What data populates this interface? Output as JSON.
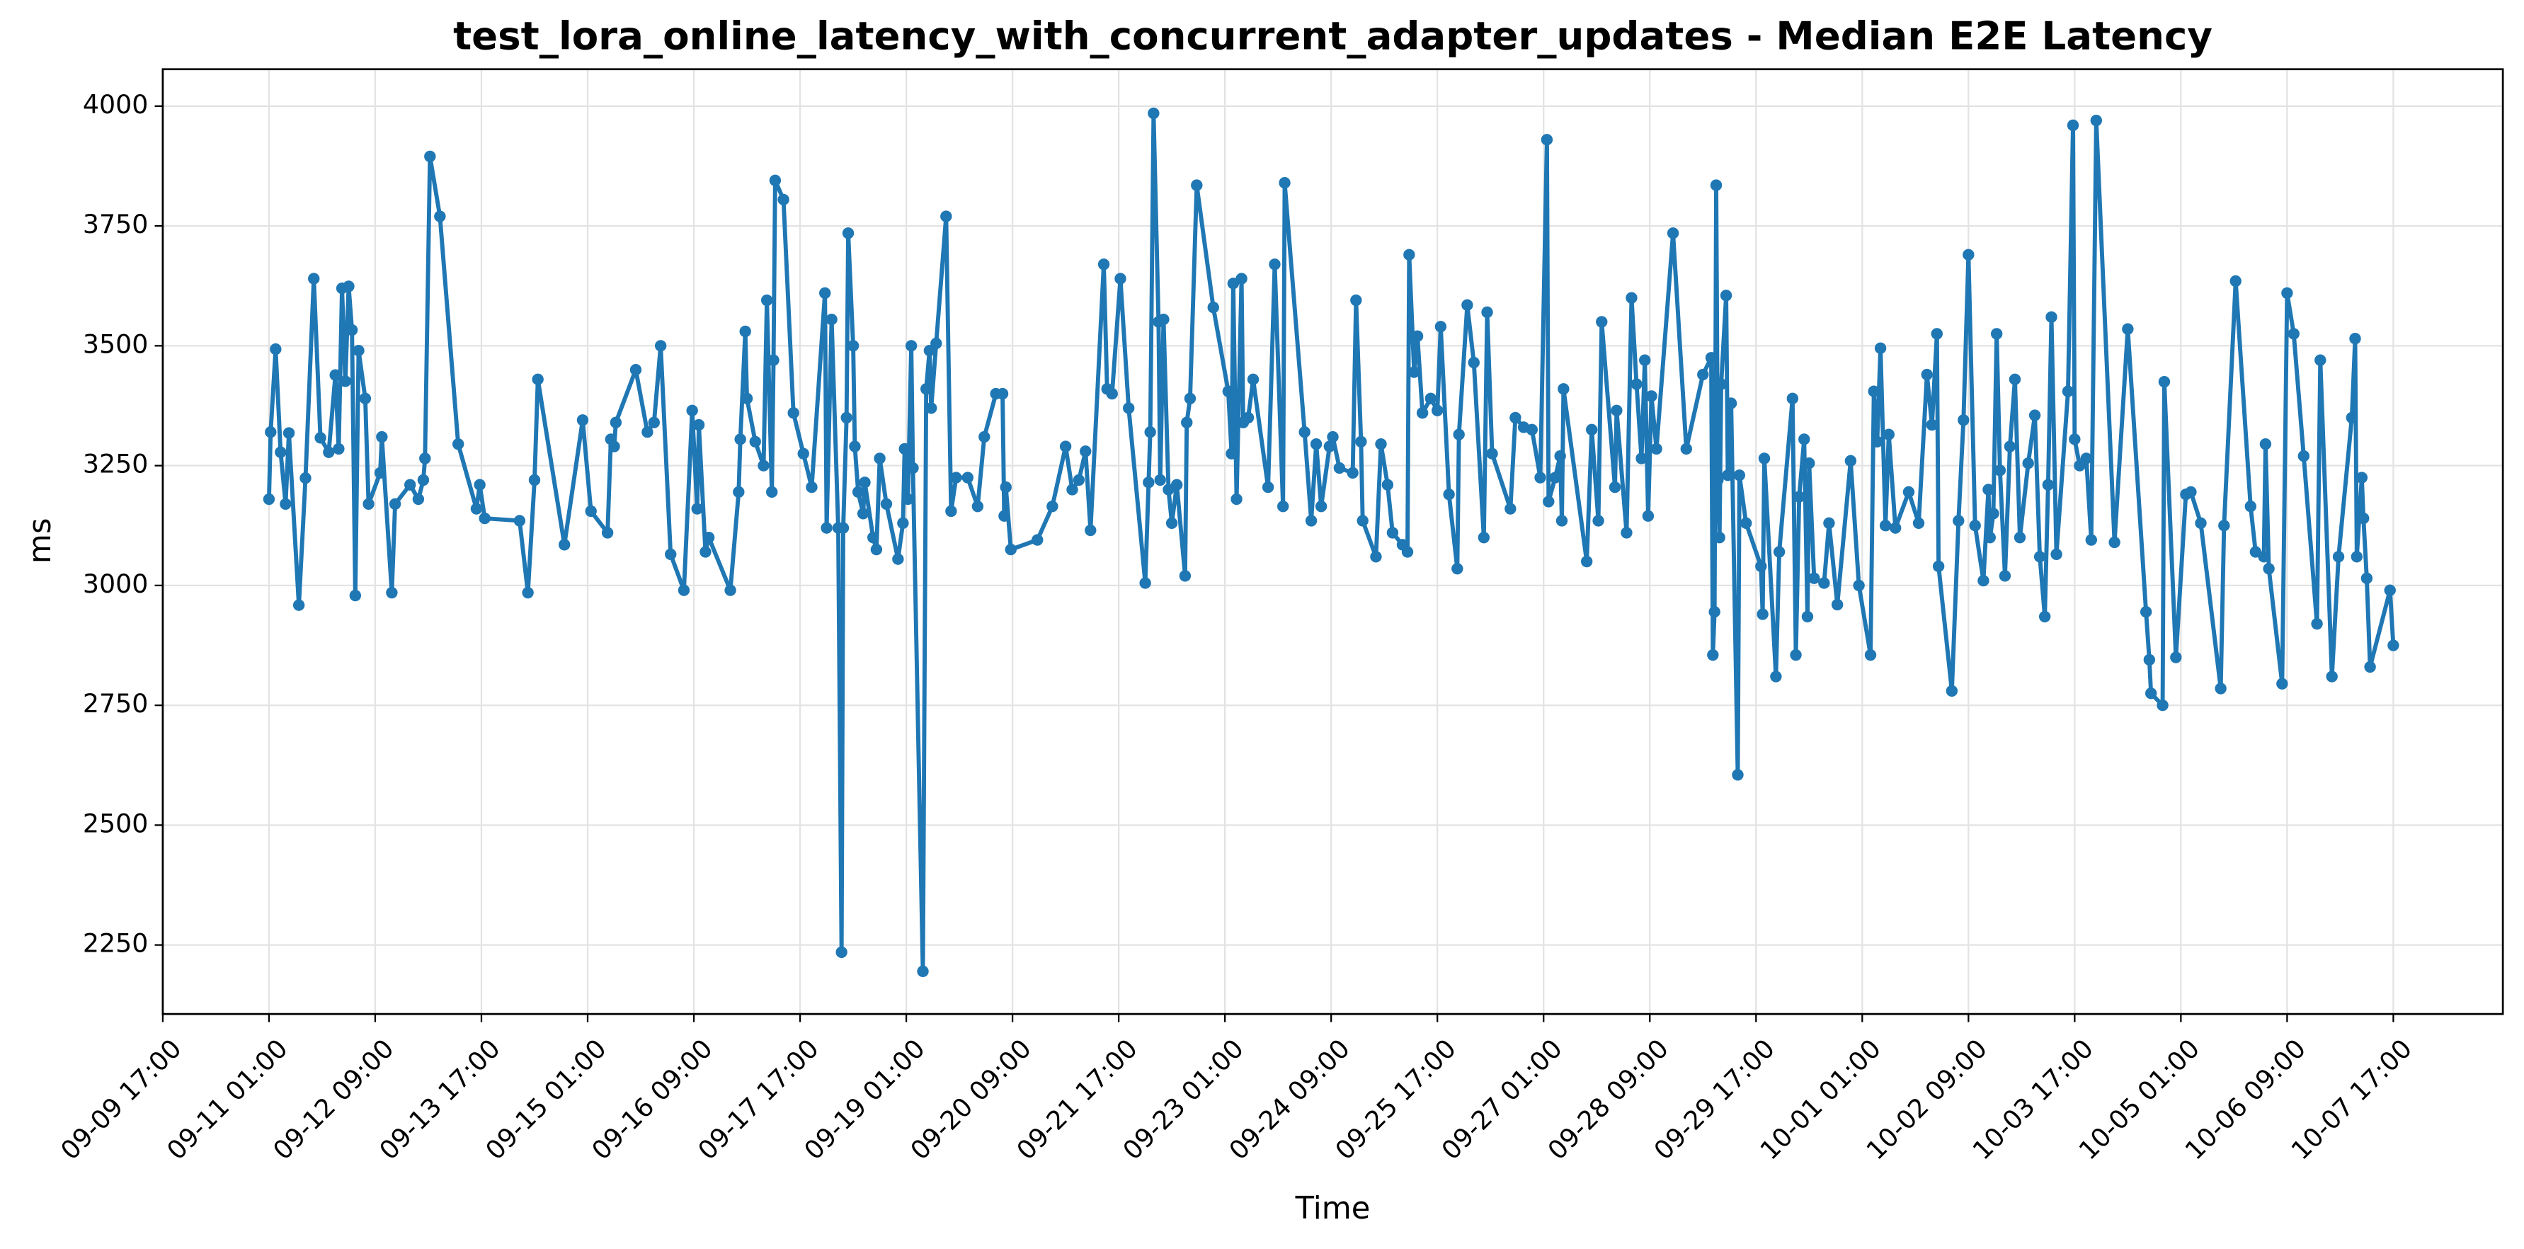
{
  "chart_data": {
    "type": "line",
    "title": "test_lora_online_latency_with_concurrent_adapter_updates - Median E2E Latency",
    "xlabel": "Time",
    "ylabel": "ms",
    "color": "#1f77b4",
    "grid": true,
    "xlim": [
      "09-09 17:00",
      "10-09 02:00"
    ],
    "xticks": [
      "09-09 17:00",
      "09-11 01:00",
      "09-12 09:00",
      "09-13 17:00",
      "09-15 01:00",
      "09-16 09:00",
      "09-17 17:00",
      "09-19 01:00",
      "09-20 09:00",
      "09-21 17:00",
      "09-23 01:00",
      "09-24 09:00",
      "09-25 17:00",
      "09-27 01:00",
      "09-28 09:00",
      "09-29 17:00",
      "10-01 01:00",
      "10-02 09:00",
      "10-03 17:00",
      "10-05 01:00",
      "10-06 09:00",
      "10-07 17:00"
    ],
    "ylim": [
      2106,
      4077
    ],
    "yticks": [
      2250,
      2500,
      2750,
      3000,
      3250,
      3500,
      3750,
      4000
    ],
    "x": [
      "09-11 01:00",
      "09-11 01:30",
      "09-11 03:00",
      "09-11 04:30",
      "09-11 06:00",
      "09-11 07:00",
      "09-11 10:00",
      "09-11 12:00",
      "09-11 14:30",
      "09-11 16:30",
      "09-11 19:00",
      "09-11 21:00",
      "09-11 22:00",
      "09-11 23:00",
      "09-12 00:00",
      "09-12 01:00",
      "09-12 02:00",
      "09-12 03:00",
      "09-12 04:00",
      "09-12 06:00",
      "09-12 07:00",
      "09-12 10:30",
      "09-12 11:00",
      "09-12 14:00",
      "09-12 15:00",
      "09-12 19:30",
      "09-12 22:00",
      "09-12 23:30",
      "09-13 00:00",
      "09-13 01:30",
      "09-13 04:30",
      "09-13 10:00",
      "09-13 15:30",
      "09-13 16:30",
      "09-13 18:00",
      "09-14 04:30",
      "09-14 07:00",
      "09-14 09:00",
      "09-14 10:00",
      "09-14 18:00",
      "09-14 23:30",
      "09-15 02:00",
      "09-15 07:00",
      "09-15 08:00",
      "09-15 09:00",
      "09-15 09:30",
      "09-15 15:30",
      "09-15 19:00",
      "09-15 21:00",
      "09-15 23:00",
      "09-16 02:00",
      "09-16 06:00",
      "09-16 08:30",
      "09-16 10:00",
      "09-16 10:30",
      "09-16 12:30",
      "09-16 13:30",
      "09-16 20:00",
      "09-16 22:30",
      "09-16 23:00",
      "09-17 00:30",
      "09-17 01:00",
      "09-17 03:30",
      "09-17 06:00",
      "09-17 07:00",
      "09-17 08:30",
      "09-17 09:00",
      "09-17 09:30",
      "09-17 12:00",
      "09-17 15:00",
      "09-17 18:00",
      "09-17 20:30",
      "09-18 00:30",
      "09-18 01:00",
      "09-18 02:30",
      "09-18 04:30",
      "09-18 05:30",
      "09-18 06:00",
      "09-18 07:00",
      "09-18 07:30",
      "09-18 09:00",
      "09-18 09:30",
      "09-18 10:30",
      "09-18 12:00",
      "09-18 12:30",
      "09-18 15:00",
      "09-18 16:00",
      "09-18 17:00",
      "09-18 19:00",
      "09-18 22:30",
      "09-19 00:00",
      "09-19 00:30",
      "09-19 01:30",
      "09-19 02:30",
      "09-19 03:00",
      "09-19 06:00",
      "09-19 07:00",
      "09-19 08:00",
      "09-19 08:30",
      "09-19 10:00",
      "09-19 13:00",
      "09-19 14:30",
      "09-19 16:00",
      "09-19 19:30",
      "09-19 22:30",
      "09-20 00:30",
      "09-20 04:00",
      "09-20 06:00",
      "09-20 06:30",
      "09-20 07:00",
      "09-20 08:30",
      "09-20 16:30",
      "09-20 21:00",
      "09-21 01:00",
      "09-21 03:00",
      "09-21 05:00",
      "09-21 07:00",
      "09-21 08:30",
      "09-21 12:30",
      "09-21 13:30",
      "09-21 15:00",
      "09-21 17:30",
      "09-21 20:00",
      "09-22 01:00",
      "09-22 02:00",
      "09-22 02:30",
      "09-22 03:30",
      "09-22 05:00",
      "09-22 05:30",
      "09-22 06:30",
      "09-22 08:00",
      "09-22 09:00",
      "09-22 10:30",
      "09-22 13:00",
      "09-22 13:30",
      "09-22 14:30",
      "09-22 16:30",
      "09-22 21:30",
      "09-23 02:00",
      "09-23 03:00",
      "09-23 03:30",
      "09-23 04:30",
      "09-23 06:00",
      "09-23 06:30",
      "09-23 08:00",
      "09-23 09:30",
      "09-23 14:00",
      "09-23 16:00",
      "09-23 18:30",
      "09-23 19:00",
      "09-24 01:00",
      "09-24 03:00",
      "09-24 04:30",
      "09-24 06:00",
      "09-24 08:30",
      "09-24 09:30",
      "09-24 11:30",
      "09-24 15:30",
      "09-24 16:30",
      "09-24 18:00",
      "09-24 18:30",
      "09-24 22:30",
      "09-25 00:00",
      "09-25 02:00",
      "09-25 03:30",
      "09-25 06:30",
      "09-25 08:00",
      "09-25 08:30",
      "09-25 10:00",
      "09-25 11:00",
      "09-25 12:30",
      "09-25 15:00",
      "09-25 17:00",
      "09-25 18:00",
      "09-25 20:30",
      "09-25 23:00",
      "09-25 23:30",
      "09-26 02:00",
      "09-26 04:00",
      "09-26 07:00",
      "09-26 08:00",
      "09-26 09:30",
      "09-26 15:00",
      "09-26 16:30",
      "09-26 19:00",
      "09-26 21:30",
      "09-27 00:00",
      "09-27 02:00",
      "09-27 02:30",
      "09-27 04:30",
      "09-27 06:00",
      "09-27 06:30",
      "09-27 07:00",
      "09-27 14:00",
      "09-27 15:30",
      "09-27 17:30",
      "09-27 18:30",
      "09-27 22:30",
      "09-27 23:00",
      "09-28 02:00",
      "09-28 03:30",
      "09-28 05:00",
      "09-28 06:30",
      "09-28 07:30",
      "09-28 08:30",
      "09-28 09:30",
      "09-28 11:00",
      "09-28 16:00",
      "09-28 20:00",
      "09-29 01:00",
      "09-29 03:30",
      "09-29 04:00",
      "09-29 04:30",
      "09-29 05:00",
      "09-29 05:30",
      "09-29 06:00",
      "09-29 06:30",
      "09-29 08:00",
      "09-29 08:30",
      "09-29 09:30",
      "09-29 11:30",
      "09-29 12:00",
      "09-29 14:00",
      "09-29 18:30",
      "09-29 19:00",
      "09-29 19:30",
      "09-29 23:00",
      "09-30 00:00",
      "09-30 04:00",
      "09-30 05:00",
      "09-30 06:00",
      "09-30 07:30",
      "09-30 08:30",
      "09-30 09:00",
      "09-30 10:30",
      "09-30 13:30",
      "09-30 15:00",
      "09-30 17:30",
      "09-30 21:30",
      "10-01 00:00",
      "10-01 03:30",
      "10-01 04:30",
      "10-01 05:30",
      "10-01 06:30",
      "10-01 08:00",
      "10-01 09:00",
      "10-01 11:00",
      "10-01 15:00",
      "10-01 18:00",
      "10-01 20:30",
      "10-01 22:00",
      "10-01 23:30",
      "10-02 00:00",
      "10-02 04:00",
      "10-02 06:00",
      "10-02 07:30",
      "10-02 09:00",
      "10-02 11:00",
      "10-02 13:30",
      "10-02 15:00",
      "10-02 15:30",
      "10-02 16:30",
      "10-02 17:30",
      "10-02 18:30",
      "10-02 20:00",
      "10-02 21:30",
      "10-02 23:00",
      "10-03 00:30",
      "10-03 03:00",
      "10-03 05:00",
      "10-03 06:30",
      "10-03 08:00",
      "10-03 09:00",
      "10-03 10:00",
      "10-03 11:30",
      "10-03 15:00",
      "10-03 16:30",
      "10-03 17:00",
      "10-03 18:30",
      "10-03 20:30",
      "10-03 22:00",
      "10-03 23:30",
      "10-04 05:00",
      "10-04 09:00",
      "10-04 14:30",
      "10-04 15:30",
      "10-04 16:00",
      "10-04 19:30",
      "10-04 20:00",
      "10-04 23:30",
      "10-05 02:30",
      "10-05 04:00",
      "10-05 07:00",
      "10-05 13:00",
      "10-05 14:00",
      "10-05 17:30",
      "10-05 22:00",
      "10-05 23:30",
      "10-06 02:00",
      "10-06 02:30",
      "10-06 03:30",
      "10-06 07:30",
      "10-06 09:00",
      "10-06 11:00",
      "10-06 14:00",
      "10-06 18:00",
      "10-06 19:00",
      "10-06 22:30",
      "10-07 00:30",
      "10-07 04:30",
      "10-07 05:30",
      "10-07 06:00",
      "10-07 07:30",
      "10-07 08:00",
      "10-07 09:00",
      "10-07 10:00",
      "10-07 16:00",
      "10-07 17:00"
    ],
    "values": [
      3180,
      3320,
      3493,
      3278,
      3170,
      3318,
      2959,
      3224,
      3640,
      3308,
      3278,
      3439,
      3285,
      3620,
      3426,
      3624,
      3533,
      2979,
      3490,
      3390,
      3170,
      3235,
      3310,
      2985,
      3170,
      3210,
      3180,
      3220,
      3265,
      3895,
      3770,
      3295,
      3160,
      3210,
      3140,
      3135,
      2985,
      3220,
      3430,
      3085,
      3345,
      3155,
      3110,
      3305,
      3290,
      3340,
      3450,
      3320,
      3340,
      3500,
      3065,
      2990,
      3365,
      3160,
      3335,
      3070,
      3100,
      2990,
      3195,
      3305,
      3530,
      3390,
      3300,
      3250,
      3595,
      3195,
      3470,
      3845,
      3805,
      3360,
      3275,
      3205,
      3610,
      3120,
      3555,
      3120,
      2235,
      3120,
      3350,
      3735,
      3500,
      3290,
      3195,
      3150,
      3215,
      3100,
      3075,
      3265,
      3170,
      3055,
      3130,
      3285,
      3180,
      3500,
      3245,
      2195,
      3410,
      3490,
      3370,
      3505,
      3770,
      3155,
      3225,
      3225,
      3165,
      3310,
      3400,
      3400,
      3145,
      3205,
      3075,
      3095,
      3165,
      3290,
      3200,
      3220,
      3280,
      3115,
      3670,
      3410,
      3400,
      3640,
      3370,
      3005,
      3215,
      3320,
      3985,
      3550,
      3220,
      3555,
      3200,
      3130,
      3210,
      3020,
      3340,
      3390,
      3835,
      3580,
      3405,
      3275,
      3630,
      3180,
      3640,
      3340,
      3350,
      3430,
      3205,
      3670,
      3165,
      3840,
      3320,
      3135,
      3295,
      3165,
      3290,
      3310,
      3245,
      3235,
      3595,
      3300,
      3135,
      3060,
      3295,
      3210,
      3110,
      3085,
      3070,
      3690,
      3445,
      3520,
      3360,
      3390,
      3365,
      3540,
      3190,
      3035,
      3315,
      3585,
      3465,
      3100,
      3570,
      3275,
      3160,
      3350,
      3330,
      3325,
      3225,
      3930,
      3175,
      3225,
      3270,
      3135,
      3410,
      3050,
      3325,
      3135,
      3550,
      3205,
      3365,
      3110,
      3600,
      3420,
      3265,
      3470,
      3145,
      3395,
      3285,
      3735,
      3285,
      3440,
      3475,
      2855,
      2945,
      3835,
      3220,
      3100,
      3420,
      3605,
      3230,
      3380,
      2605,
      3230,
      3130,
      3040,
      2940,
      3265,
      2810,
      3070,
      3390,
      2855,
      3185,
      3305,
      2935,
      3255,
      3015,
      3005,
      3130,
      2960,
      3260,
      3000,
      2855,
      3405,
      3300,
      3495,
      3125,
      3315,
      3120,
      3195,
      3130,
      3440,
      3335,
      3525,
      3040,
      2780,
      3135,
      3345,
      3690,
      3125,
      3010,
      3200,
      3100,
      3150,
      3525,
      3240,
      3020,
      3290,
      3430,
      3100,
      3255,
      3355,
      3060,
      2935,
      3210,
      3560,
      3065,
      3405,
      3960,
      3305,
      3250,
      3265,
      3095,
      3970,
      3090,
      3535,
      2945,
      2845,
      2775,
      2750,
      3425,
      2850,
      3190,
      3195,
      3130,
      2785,
      3125,
      3635,
      3165,
      3070,
      3060,
      3295,
      3035,
      2795,
      3610,
      3525,
      3270,
      2920,
      3470,
      2810,
      3060,
      3350,
      3515,
      3060,
      3225,
      3140,
      3015,
      2830,
      2990,
      2875
    ]
  }
}
